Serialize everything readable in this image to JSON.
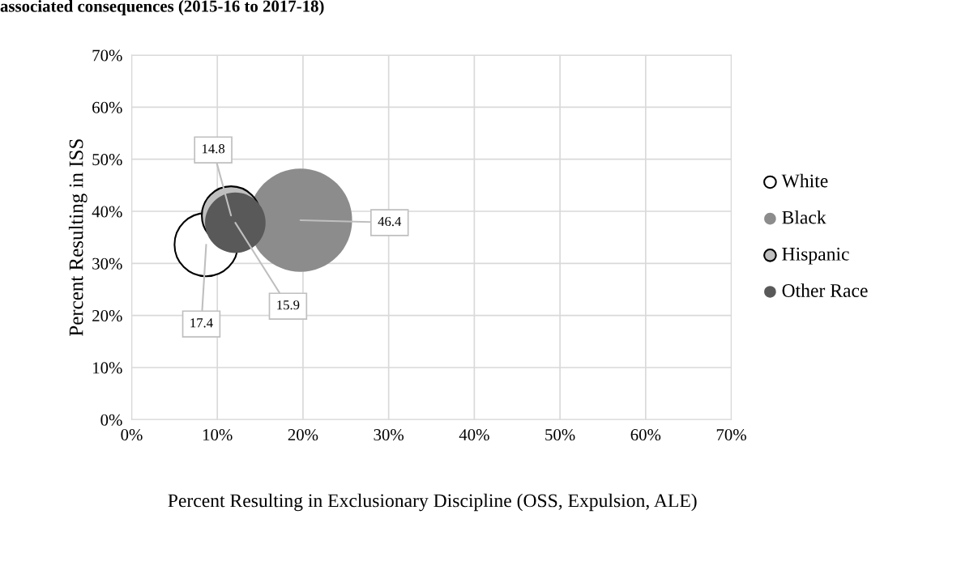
{
  "chart_data": {
    "type": "bubble",
    "title": "associated consequences (2015-16 to 2017-18)",
    "xlabel": "Percent Resulting in Exclusionary Discipline (OSS, Expulsion, ALE)",
    "ylabel": "Percent Resulting in ISS",
    "xlim": [
      0,
      70
    ],
    "ylim": [
      0,
      70
    ],
    "xticks": [
      {
        "value": 0,
        "label": "0%"
      },
      {
        "value": 10,
        "label": "10%"
      },
      {
        "value": 20,
        "label": "20%"
      },
      {
        "value": 30,
        "label": "30%"
      },
      {
        "value": 40,
        "label": "40%"
      },
      {
        "value": 50,
        "label": "50%"
      },
      {
        "value": 60,
        "label": "60%"
      },
      {
        "value": 70,
        "label": "70%"
      }
    ],
    "yticks": [
      {
        "value": 0,
        "label": "0%"
      },
      {
        "value": 10,
        "label": "10%"
      },
      {
        "value": 20,
        "label": "20%"
      },
      {
        "value": 30,
        "label": "30%"
      },
      {
        "value": 40,
        "label": "40%"
      },
      {
        "value": 50,
        "label": "50%"
      },
      {
        "value": 60,
        "label": "60%"
      },
      {
        "value": 70,
        "label": "70%"
      }
    ],
    "grid": true,
    "legend": "right",
    "series": [
      {
        "name": "White",
        "color": "#ffffff",
        "x": [
          8.7
        ],
        "values": [
          33.6
        ],
        "sizes": [
          17.4
        ],
        "value_labels": [
          "17.4"
        ]
      },
      {
        "name": "Black",
        "color": "#8c8c8c",
        "x": [
          19.7
        ],
        "values": [
          38.3
        ],
        "sizes": [
          46.4
        ],
        "value_labels": [
          "46.4"
        ]
      },
      {
        "name": "Hispanic",
        "color": "#bfbfbf",
        "x": [
          11.6
        ],
        "values": [
          39.2
        ],
        "sizes": [
          14.8
        ],
        "value_labels": [
          "14.8"
        ]
      },
      {
        "name": "Other Race",
        "color": "#595959",
        "x": [
          12.1
        ],
        "values": [
          37.8
        ],
        "sizes": [
          15.9
        ],
        "value_labels": [
          "15.9"
        ]
      }
    ]
  }
}
